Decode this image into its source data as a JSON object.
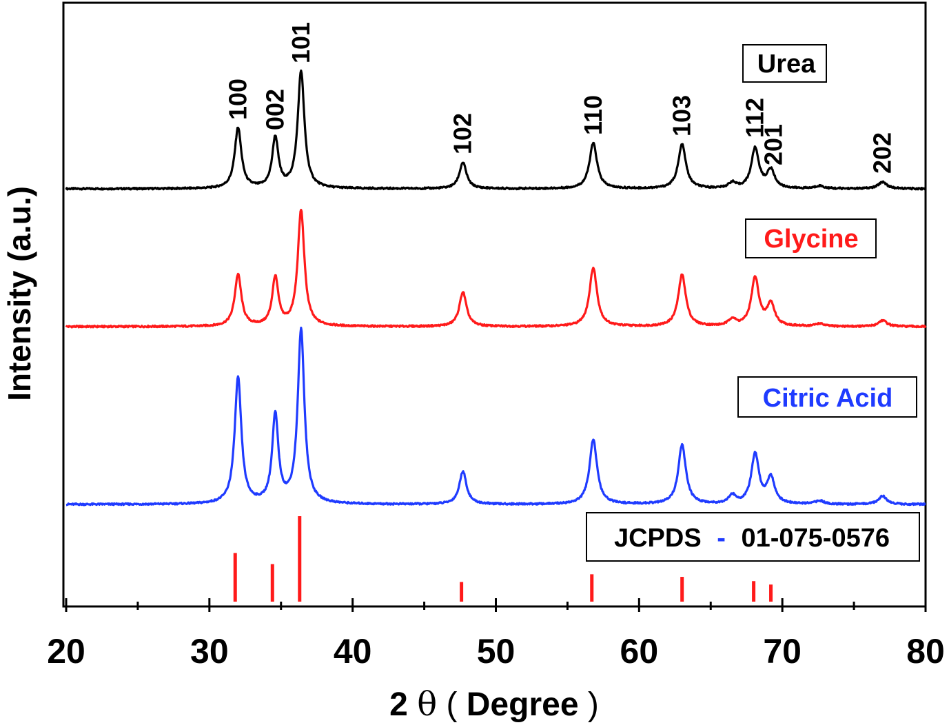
{
  "chart_data": {
    "type": "line",
    "xlabel_main": "2",
    "xlabel_theta": "θ",
    "xlabel_rest": "Degree",
    "ylabel": "Intensity (a.u.)",
    "xlim": [
      20,
      80
    ],
    "x_ticks": [
      "20",
      "30",
      "40",
      "50",
      "60",
      "70",
      "80"
    ],
    "grid": false,
    "colors": {
      "urea": "#000000",
      "glycine": "#ff1a1a",
      "citric": "#1f3bff",
      "reference": "#ff1a1a",
      "dash": "#1f3bff"
    },
    "peaks": [
      {
        "pos": 32.0,
        "w": 0.28,
        "urea": 88,
        "glycine": 75,
        "citric": 183,
        "hkl": "100"
      },
      {
        "pos": 34.6,
        "w": 0.26,
        "urea": 73,
        "glycine": 70,
        "citric": 127,
        "hkl": "002"
      },
      {
        "pos": 36.4,
        "w": 0.28,
        "urea": 170,
        "glycine": 168,
        "citric": 252,
        "hkl": "101"
      },
      {
        "pos": 47.7,
        "w": 0.3,
        "urea": 38,
        "glycine": 50,
        "citric": 48,
        "hkl": "102"
      },
      {
        "pos": 56.8,
        "w": 0.32,
        "urea": 66,
        "glycine": 85,
        "citric": 94,
        "hkl": "110"
      },
      {
        "pos": 63.0,
        "w": 0.32,
        "urea": 64,
        "glycine": 75,
        "citric": 86,
        "hkl": "103"
      },
      {
        "pos": 66.5,
        "w": 0.3,
        "urea": 8,
        "glycine": 10,
        "citric": 12,
        "hkl": ""
      },
      {
        "pos": 68.1,
        "w": 0.32,
        "urea": 58,
        "glycine": 70,
        "citric": 72,
        "hkl": "112"
      },
      {
        "pos": 69.2,
        "w": 0.32,
        "urea": 26,
        "glycine": 32,
        "citric": 38,
        "hkl": "201"
      },
      {
        "pos": 72.6,
        "w": 0.35,
        "urea": 4,
        "glycine": 4,
        "citric": 5,
        "hkl": ""
      },
      {
        "pos": 77.0,
        "w": 0.35,
        "urea": 10,
        "glycine": 9,
        "citric": 12,
        "hkl": "202"
      }
    ],
    "series": [
      {
        "key": "urea",
        "name": "Urea"
      },
      {
        "key": "glycine",
        "name": "Glycine"
      },
      {
        "key": "citric",
        "name": "Citric Acid"
      }
    ],
    "reference": {
      "name_left": "JCPDS",
      "dash": "-",
      "name_right": "01-075-0576",
      "sticks": [
        {
          "pos": 31.8,
          "intensity": 57
        },
        {
          "pos": 34.4,
          "intensity": 44
        },
        {
          "pos": 36.3,
          "intensity": 100
        },
        {
          "pos": 47.6,
          "intensity": 23
        },
        {
          "pos": 56.7,
          "intensity": 32
        },
        {
          "pos": 63.0,
          "intensity": 29
        },
        {
          "pos": 68.0,
          "intensity": 24
        },
        {
          "pos": 69.2,
          "intensity": 20
        }
      ]
    }
  }
}
